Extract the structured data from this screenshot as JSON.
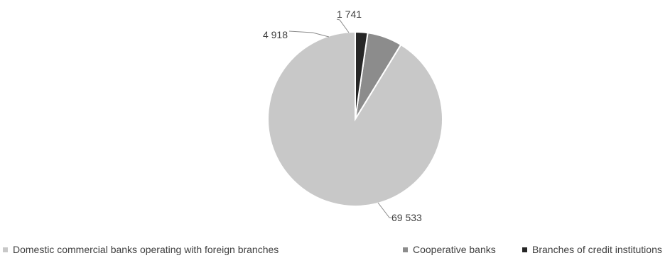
{
  "chart_data": {
    "type": "pie",
    "title": "",
    "categories": [
      "Domestic commercial banks operating with foreign branches",
      "Cooperative banks",
      "Branches of credit institutions"
    ],
    "values": [
      69533,
      4918,
      1741
    ],
    "value_labels": [
      "69 533",
      "4 918",
      "1 741"
    ],
    "colors": [
      "#c8c8c8",
      "#8c8c8c",
      "#262626"
    ],
    "legend_placement": "bottom",
    "start_angle": "12 o'clock",
    "direction": "counterclockwise"
  }
}
